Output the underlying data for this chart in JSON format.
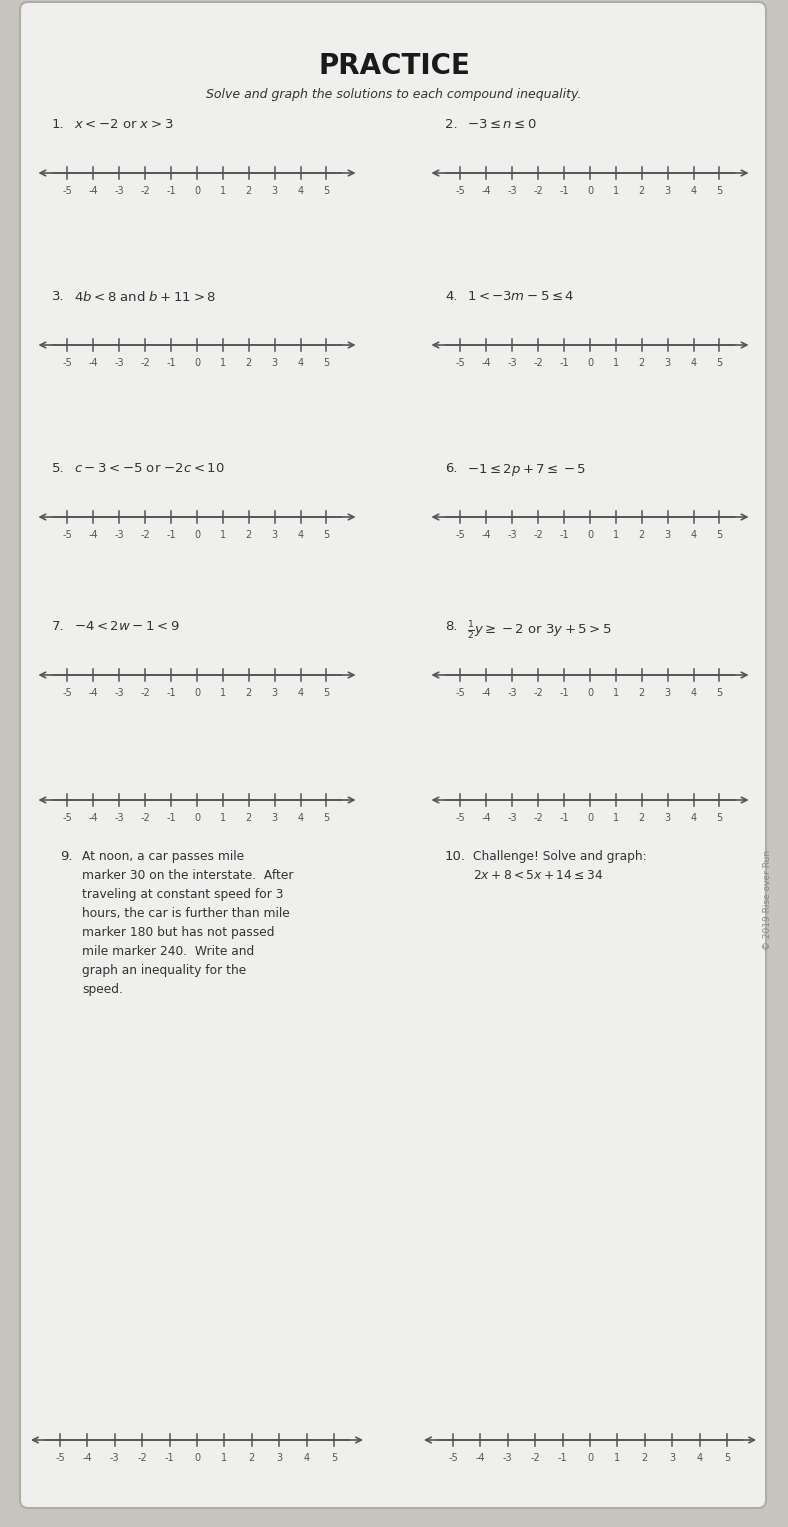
{
  "title": "PRACTICE",
  "subtitle": "Solve and graph the solutions to each compound inequality.",
  "bg_color": "#c8c4be",
  "paper_color": "#efefed",
  "nl_color": "#555555",
  "text_color": "#333333",
  "title_color": "#1a1a1a",
  "problems": [
    {
      "num": "1.",
      "text": "$x < -2$ or $x > 3$",
      "row": 0,
      "col": 0
    },
    {
      "num": "2.",
      "text": "$-3 \\leq n \\leq 0$",
      "row": 0,
      "col": 1
    },
    {
      "num": "3.",
      "text": "$4b < 8$ and $b + 11 > 8$",
      "row": 1,
      "col": 0
    },
    {
      "num": "4.",
      "text": "$1 < -3m - 5 \\leq 4$",
      "row": 1,
      "col": 1
    },
    {
      "num": "5.",
      "text": "$c - 3 < -5$ or $-2c < 10$",
      "row": 2,
      "col": 0
    },
    {
      "num": "6.",
      "text": "$-1 \\leq 2p + 7 \\leq -5$",
      "row": 2,
      "col": 1
    },
    {
      "num": "7.",
      "text": "$-4 < 2w - 1 < 9$",
      "row": 3,
      "col": 0
    },
    {
      "num": "8.",
      "text": "$\\frac{1}{2}y \\geq -2$ or $3y + 5 > 5$",
      "row": 3,
      "col": 1
    }
  ],
  "p9_lines": [
    "At noon, a car passes mile",
    "marker 30 on the interstate.  After",
    "traveling at constant speed for 3",
    "hours, the car is further than mile",
    "marker 180 but has not passed",
    "mile marker 240.  Write and",
    "graph an inequality for the",
    "speed."
  ],
  "p10_line1": "Challenge! Solve and graph:",
  "p10_line2": "$2x + 8 < 5x + 14 \\leq 34$",
  "copyright": "© 2019 Rise over Run"
}
